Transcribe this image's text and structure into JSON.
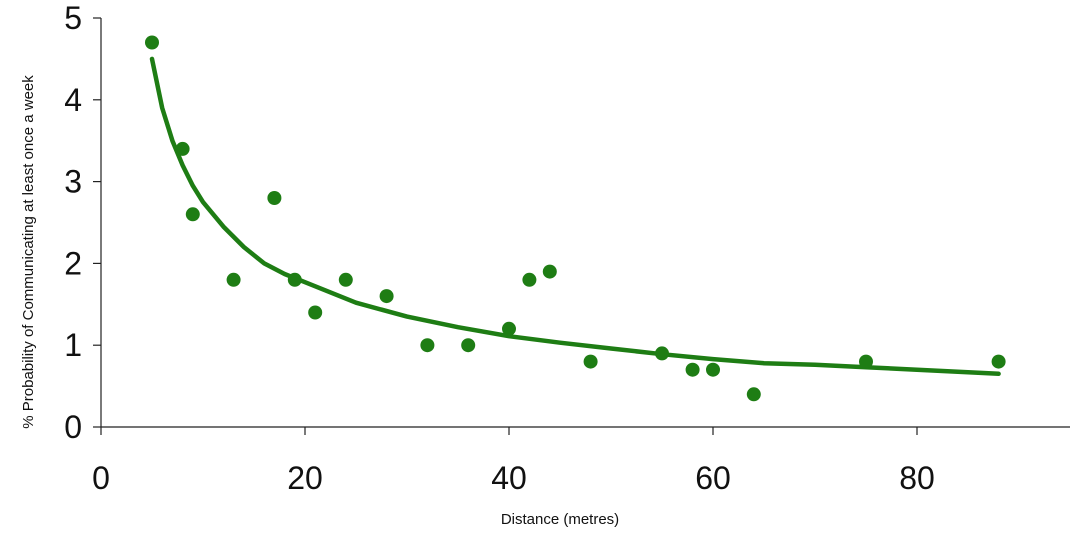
{
  "chart_data": {
    "type": "scatter",
    "xlabel": "Distance (metres)",
    "ylabel": "% Probability of Communicating at least once a week",
    "xlim": [
      0,
      95
    ],
    "ylim": [
      0,
      5
    ],
    "xticks": [
      "0",
      "20",
      "40",
      "60",
      "80"
    ],
    "yticks": [
      "0",
      "1",
      "2",
      "3",
      "4",
      "5"
    ],
    "grid": false,
    "color": "#1e7d14",
    "series": [
      {
        "type": "scatter",
        "x": [
          5,
          8,
          9,
          13,
          17,
          19,
          21,
          24,
          28,
          32,
          36,
          40,
          42,
          44,
          48,
          55,
          58,
          60,
          64,
          75,
          88
        ],
        "y": [
          4.7,
          3.4,
          2.6,
          1.8,
          2.8,
          1.8,
          1.4,
          1.8,
          1.6,
          1.0,
          1.0,
          1.2,
          1.8,
          1.9,
          0.8,
          0.9,
          0.7,
          0.7,
          0.4,
          0.8,
          0.8
        ]
      },
      {
        "type": "line",
        "x": [
          5,
          6,
          7,
          8,
          9,
          10,
          12,
          14,
          16,
          18,
          20,
          25,
          30,
          35,
          40,
          45,
          50,
          55,
          60,
          65,
          70,
          75,
          80,
          85,
          88
        ],
        "y": [
          4.5,
          3.9,
          3.5,
          3.2,
          2.95,
          2.75,
          2.45,
          2.2,
          2.0,
          1.87,
          1.77,
          1.52,
          1.35,
          1.22,
          1.11,
          1.03,
          0.96,
          0.89,
          0.83,
          0.78,
          0.76,
          0.73,
          0.7,
          0.67,
          0.65
        ]
      }
    ]
  }
}
